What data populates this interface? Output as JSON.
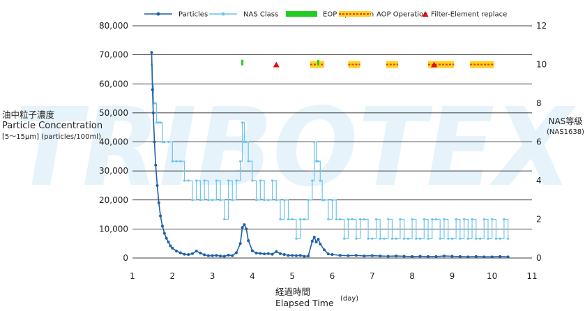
{
  "watermark": "TRIBOTEX",
  "legend": [
    {
      "key": "particles",
      "label": "Particles"
    },
    {
      "key": "nas",
      "label": "NAS Class"
    },
    {
      "key": "eop",
      "label": "EOP Operation"
    },
    {
      "key": "aop",
      "label": "AOP Operation"
    },
    {
      "key": "filter",
      "label": "Filter-Element replace"
    }
  ],
  "y_left_label": {
    "ja": "油中粒子濃度",
    "en": "Particle Concentration",
    "unit": "[5～15μm] (particles/100ml)"
  },
  "y_right_label": {
    "ja": "NAS等級",
    "en": "(NAS1638)"
  },
  "x_label": {
    "ja": "経過時間",
    "en": "Elapsed Time",
    "unit": "(day)"
  },
  "colors": {
    "particles": "#1f5fa8",
    "nas": "#6cc4f0",
    "eop": "#22cc22",
    "aop_fill": "#ffd21f",
    "aop_stripe": "#e83a1e",
    "filter": "#e01010",
    "grid": "#000000",
    "watermark": "#e6f3fa"
  },
  "chart_data": {
    "type": "line",
    "x_ticks": [
      "1",
      "2",
      "3",
      "4",
      "5",
      "6",
      "7",
      "8",
      "9",
      "10",
      "11"
    ],
    "y_left_ticks": [
      "0",
      "10,000",
      "20,000",
      "30,000",
      "40,000",
      "50,000",
      "60,000",
      "70,000",
      "80,000"
    ],
    "y_right_ticks": [
      "0",
      "2",
      "4",
      "6",
      "8",
      "10",
      "12"
    ],
    "xlim": [
      1,
      11
    ],
    "ylim": [
      0,
      80000
    ],
    "y2lim": [
      0,
      12
    ],
    "grid": true,
    "legend_position": "top",
    "series": [
      {
        "name": "Particles",
        "axis": "left",
        "x": [
          1.48,
          1.5,
          1.52,
          1.55,
          1.58,
          1.62,
          1.66,
          1.7,
          1.75,
          1.8,
          1.85,
          1.9,
          1.95,
          2.0,
          2.1,
          2.2,
          2.3,
          2.4,
          2.5,
          2.6,
          2.7,
          2.8,
          2.9,
          3.0,
          3.1,
          3.2,
          3.3,
          3.4,
          3.5,
          3.6,
          3.7,
          3.75,
          3.8,
          3.85,
          3.9,
          4.0,
          4.1,
          4.2,
          4.3,
          4.4,
          4.5,
          4.6,
          4.7,
          4.8,
          4.9,
          5.0,
          5.1,
          5.2,
          5.3,
          5.4,
          5.5,
          5.55,
          5.6,
          5.65,
          5.7,
          5.8,
          5.9,
          6.0,
          6.2,
          6.4,
          6.6,
          6.8,
          7.0,
          7.2,
          7.4,
          7.6,
          7.8,
          8.0,
          8.2,
          8.4,
          8.6,
          8.8,
          9.0,
          9.2,
          9.4,
          9.6,
          9.8,
          10.0,
          10.2,
          10.4
        ],
        "y": [
          70800,
          58000,
          50000,
          40000,
          32000,
          25000,
          19000,
          14500,
          11000,
          8500,
          6800,
          5500,
          4200,
          3400,
          2400,
          1800,
          1300,
          1200,
          1500,
          2400,
          1700,
          1100,
          800,
          800,
          900,
          700,
          600,
          1000,
          800,
          1800,
          5000,
          10500,
          11500,
          10000,
          6000,
          2500,
          1700,
          1600,
          1400,
          1500,
          1300,
          2200,
          1500,
          1200,
          900,
          900,
          800,
          900,
          600,
          700,
          5800,
          7200,
          5500,
          6500,
          4800,
          2800,
          1400,
          1200,
          900,
          800,
          900,
          700,
          800,
          700,
          600,
          700,
          600,
          500,
          600,
          500,
          500,
          700,
          600,
          500,
          400,
          500,
          400,
          400,
          500,
          400
        ]
      },
      {
        "name": "NAS Class",
        "axis": "right",
        "x": [
          1.48,
          1.5,
          1.53,
          1.56,
          1.6,
          1.65,
          1.7,
          1.75,
          1.8,
          1.9,
          2.0,
          2.1,
          2.2,
          2.3,
          2.4,
          2.5,
          2.6,
          2.7,
          2.8,
          2.9,
          3.0,
          3.1,
          3.2,
          3.3,
          3.4,
          3.5,
          3.6,
          3.7,
          3.75,
          3.8,
          3.85,
          3.9,
          4.0,
          4.1,
          4.2,
          4.3,
          4.4,
          4.5,
          4.6,
          4.7,
          4.8,
          4.9,
          5.0,
          5.1,
          5.2,
          5.3,
          5.4,
          5.5,
          5.55,
          5.6,
          5.65,
          5.7,
          5.75,
          5.8,
          5.9,
          6.0,
          6.1,
          6.2,
          6.3,
          6.4,
          6.5,
          6.6,
          6.7,
          6.8,
          6.9,
          7.0,
          7.1,
          7.2,
          7.3,
          7.4,
          7.5,
          7.6,
          7.7,
          7.8,
          7.9,
          8.0,
          8.1,
          8.2,
          8.3,
          8.4,
          8.5,
          8.6,
          8.7,
          8.8,
          8.9,
          9.0,
          9.1,
          9.2,
          9.3,
          9.4,
          9.5,
          9.6,
          9.7,
          9.8,
          9.9,
          10.0,
          10.1,
          10.2,
          10.3,
          10.4
        ],
        "y": [
          10,
          9,
          8,
          8,
          7,
          7,
          7,
          6,
          6,
          6,
          5,
          5,
          5,
          4,
          4,
          3,
          4,
          3,
          4,
          3,
          3,
          4,
          3,
          2,
          4,
          3,
          4,
          5,
          7,
          6,
          6,
          5,
          4,
          3,
          4,
          3,
          3,
          4,
          3,
          2,
          3,
          2,
          2,
          1,
          2,
          2,
          3,
          4,
          6,
          5,
          5,
          4,
          3,
          3,
          2,
          3,
          2,
          2,
          1,
          2,
          2,
          1,
          2,
          2,
          1,
          1,
          2,
          1,
          1,
          2,
          1,
          1,
          2,
          1,
          1,
          2,
          1,
          1,
          2,
          1,
          2,
          2,
          1,
          2,
          1,
          1,
          2,
          1,
          2,
          1,
          2,
          1,
          1,
          2,
          1,
          2,
          1,
          1,
          2,
          1
        ]
      }
    ],
    "eop_markers": [
      {
        "x": 3.75,
        "y": 10.1
      },
      {
        "x": 5.65,
        "y": 10.1
      }
    ],
    "aop_periods": [
      [
        5.45,
        5.8
      ],
      [
        6.4,
        6.7
      ],
      [
        7.35,
        7.65
      ],
      [
        8.4,
        9.05
      ],
      [
        9.45,
        10.05
      ]
    ],
    "aop_level": 10.0,
    "filter_markers": [
      {
        "x": 4.6,
        "y": 10.0
      },
      {
        "x": 8.55,
        "y": 10.0
      }
    ]
  }
}
